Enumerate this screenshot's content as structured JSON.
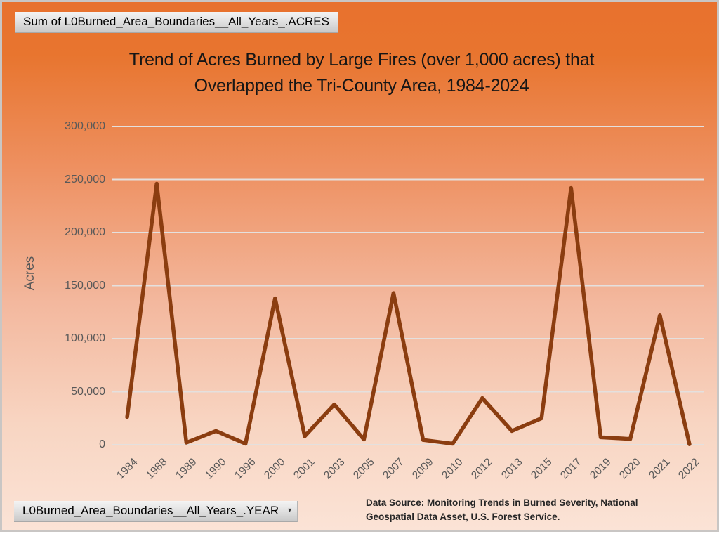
{
  "header": {
    "acres_field_button": "Sum of L0Burned_Area_Boundaries__All_Years_.ACRES"
  },
  "footer": {
    "year_field_button": "L0Burned_Area_Boundaries__All_Years_.YEAR",
    "dropdown_caret": "▾",
    "source_line1": "Data Source: Monitoring Trends in Burned Severity, National",
    "source_line2": "Geospatial Data Asset, U.S. Forest Service."
  },
  "chart_data": {
    "type": "line",
    "title": "Trend of Acres Burned by Large Fires (over 1,000 acres) that Overlapped the Tri-County Area, 1984-2024",
    "title_lines": [
      "Trend of Acres Burned by Large Fires (over 1,000 acres) that",
      "Overlapped the Tri-County Area, 1984-2024"
    ],
    "xlabel": "",
    "ylabel": "Acres",
    "series_name": "Sum of L0Burned_Area_Boundaries__All_Years_.ACRES",
    "categories": [
      "1984",
      "1988",
      "1989",
      "1990",
      "1996",
      "2000",
      "2001",
      "2003",
      "2005",
      "2007",
      "2009",
      "2010",
      "2012",
      "2013",
      "2015",
      "2017",
      "2019",
      "2020",
      "2021",
      "2022"
    ],
    "values": [
      26000,
      246000,
      2000,
      13000,
      1000,
      138000,
      8000,
      38000,
      5000,
      143000,
      4500,
      1000,
      44000,
      13000,
      25000,
      242000,
      7000,
      5500,
      122000,
      500
    ],
    "ylim": [
      0,
      300000
    ],
    "ytick_step": 50000,
    "y_tick_labels": [
      "0",
      "50,000",
      "100,000",
      "150,000",
      "200,000",
      "250,000",
      "300,000"
    ],
    "grid": "horizontal",
    "legend": "none",
    "line_color": "#8B3D10",
    "gridline_color": "#E4E0DE",
    "axis_text_color": "#595959",
    "background_gradient_top": "#E8722F",
    "background_gradient_bottom": "#FBE3D6"
  }
}
